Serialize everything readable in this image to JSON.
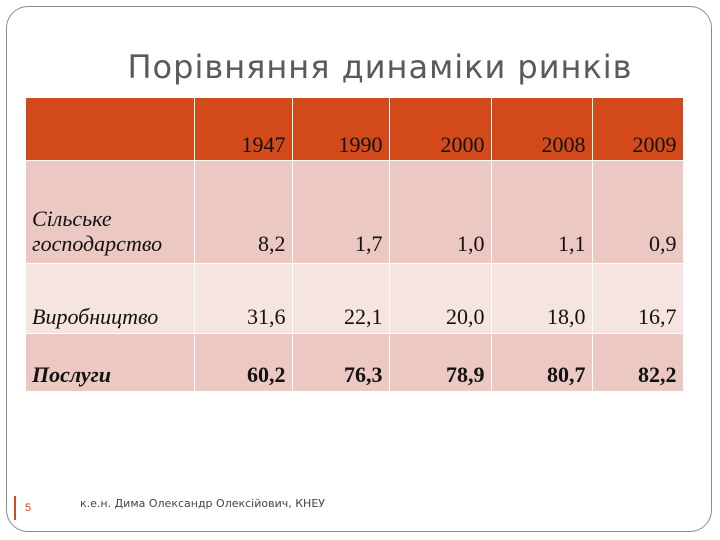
{
  "slide": {
    "title": "Порівняння динаміки ринків",
    "number": "5",
    "footer": "к.е.н. Дима Олександр Олексійович, КНЕУ"
  },
  "colors": {
    "accent": "#d24a1a",
    "row_dark": "#ecc8c2",
    "row_light": "#f6e4e1",
    "title_gray": "#5a5a5a"
  },
  "table": {
    "years": [
      "1947",
      "1990",
      "2000",
      "2008",
      "2009"
    ],
    "rows": [
      {
        "label": "Сільське господарство",
        "values": [
          "8,2",
          "1,7",
          "1,0",
          "1,1",
          "0,9"
        ]
      },
      {
        "label": "Виробництво",
        "values": [
          "31,6",
          "22,1",
          "20,0",
          "18,0",
          "16,7"
        ]
      },
      {
        "label": "Послуги",
        "values": [
          "60,2",
          "76,3",
          "78,9",
          "80,7",
          "82,2"
        ]
      }
    ]
  }
}
